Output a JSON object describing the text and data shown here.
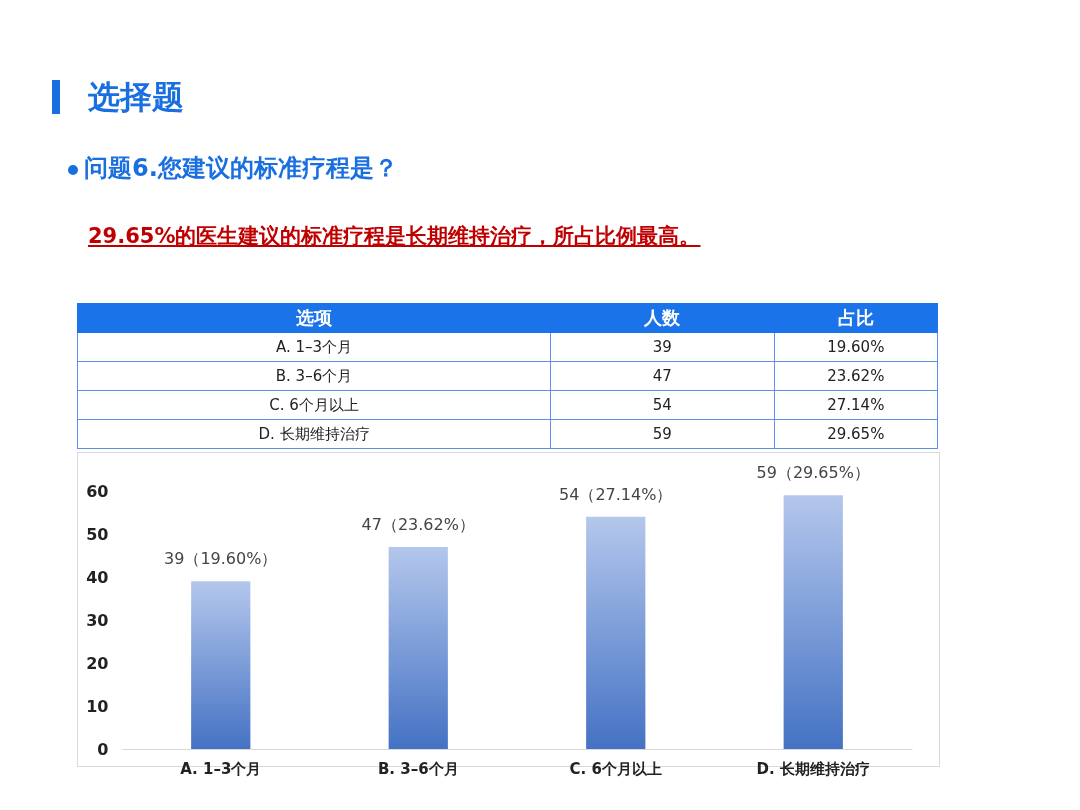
{
  "chart_data": {
    "type": "bar",
    "title": "选择题",
    "subtitle": "问题6.您建议的标准疗程是？",
    "annotations": [
      "29.65%的医生建议的标准疗程是长期维持治疗，所占比例最高。",
      "选项",
      "人数",
      "占比",
      "39",
      "19.60%",
      "47",
      "23.62%",
      "54",
      "27.14%",
      "59",
      "29.65%"
    ],
    "categories": [
      "A. 1–3个月",
      "B. 3–6个月",
      "C. 6个月以上",
      "D. 长期维持治疗"
    ],
    "values": [
      39,
      47,
      54,
      59
    ],
    "value_labels": [
      "39（19.60%）",
      "47（23.62%）",
      "54（27.14%）",
      "59（29.65%）"
    ],
    "color": "#4472c4",
    "ylim": [
      0,
      60
    ],
    "yticks": [
      0,
      10,
      20,
      30,
      40,
      50,
      60
    ],
    "grid": false
  }
}
